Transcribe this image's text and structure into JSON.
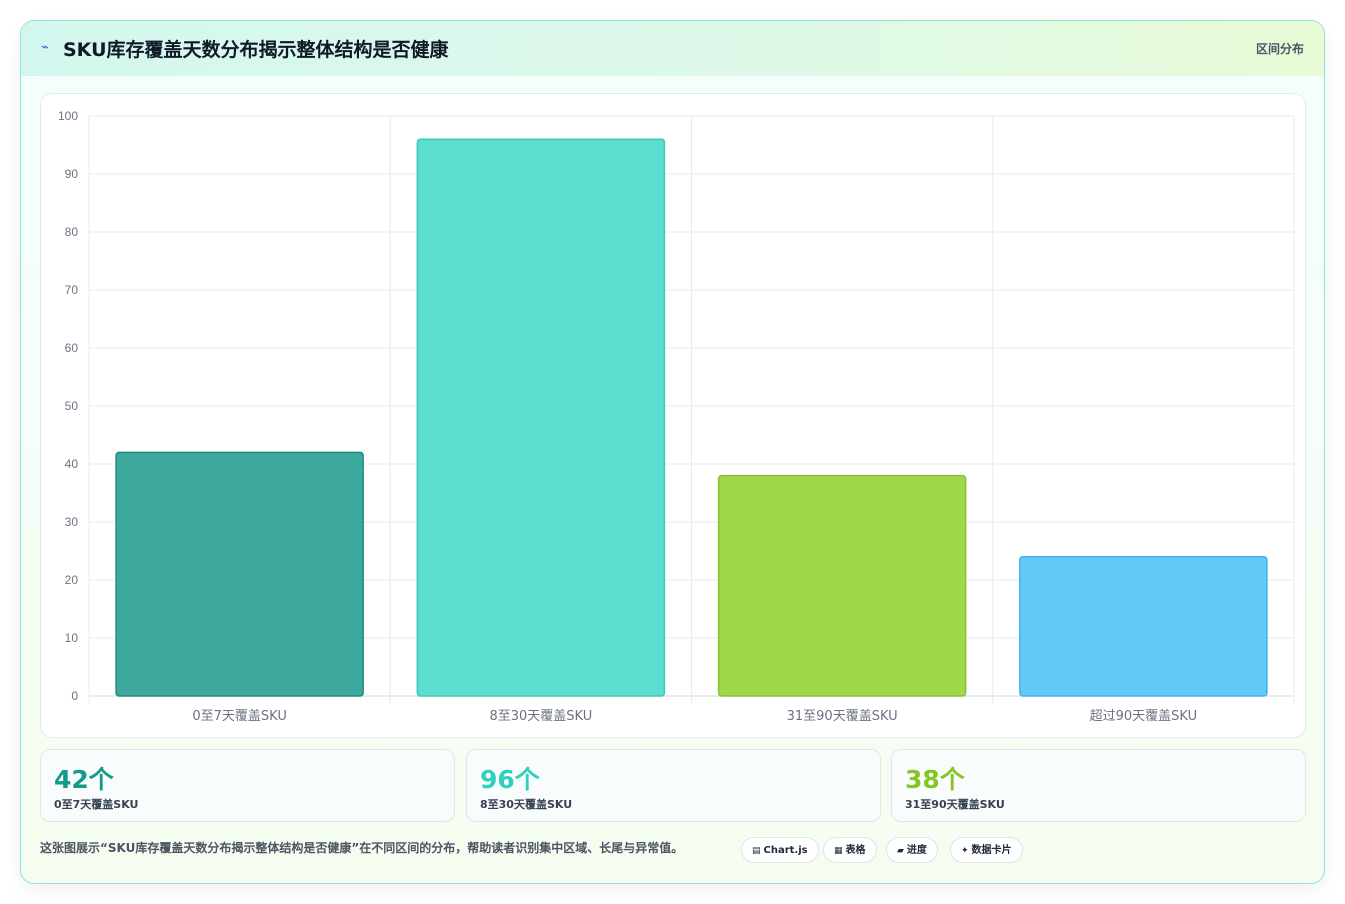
{
  "header": {
    "title": "SKU库存覆盖天数分布揭示整体结构是否健康",
    "tag": "区间分布",
    "icon": "chart-line-icon"
  },
  "chart_data": {
    "type": "bar",
    "categories": [
      "0至7天覆盖SKU",
      "8至30天覆盖SKU",
      "31至90天覆盖SKU",
      "超过90天覆盖SKU"
    ],
    "values": [
      42,
      96,
      38,
      24
    ],
    "ylim": [
      0,
      100
    ],
    "yticks": [
      0,
      10,
      20,
      30,
      40,
      50,
      60,
      70,
      80,
      90,
      100
    ],
    "grid": true,
    "legend": "none",
    "colors": [
      "#3da89d",
      "#5bded0",
      "#a0d84a",
      "#62c9f8"
    ],
    "border_colors": [
      "#1f8a7e",
      "#3cc8b8",
      "#84c230",
      "#3cb4ec"
    ]
  },
  "stats": [
    {
      "value": "42个",
      "label": "0至7天覆盖SKU",
      "color": "#16988a"
    },
    {
      "value": "96个",
      "label": "8至30天覆盖SKU",
      "color": "#2fd0bd"
    },
    {
      "value": "38个",
      "label": "31至90天覆盖SKU",
      "color": "#86c624"
    }
  ],
  "footer": {
    "text": "这张图展示“SKU库存覆盖天数分布揭示整体结构是否健康”在不同区间的分布，帮助读者识别集中区域、长尾与异常值。",
    "chips": [
      {
        "icon": "calculator-icon",
        "glyph": "▤",
        "label": "Chart.js"
      },
      {
        "icon": "table-icon",
        "glyph": "▦",
        "label": "表格"
      },
      {
        "icon": "progress-icon",
        "glyph": "▰",
        "label": "进度"
      },
      {
        "icon": "sparkle-icon",
        "glyph": "✦",
        "label": "数据卡片"
      }
    ]
  }
}
